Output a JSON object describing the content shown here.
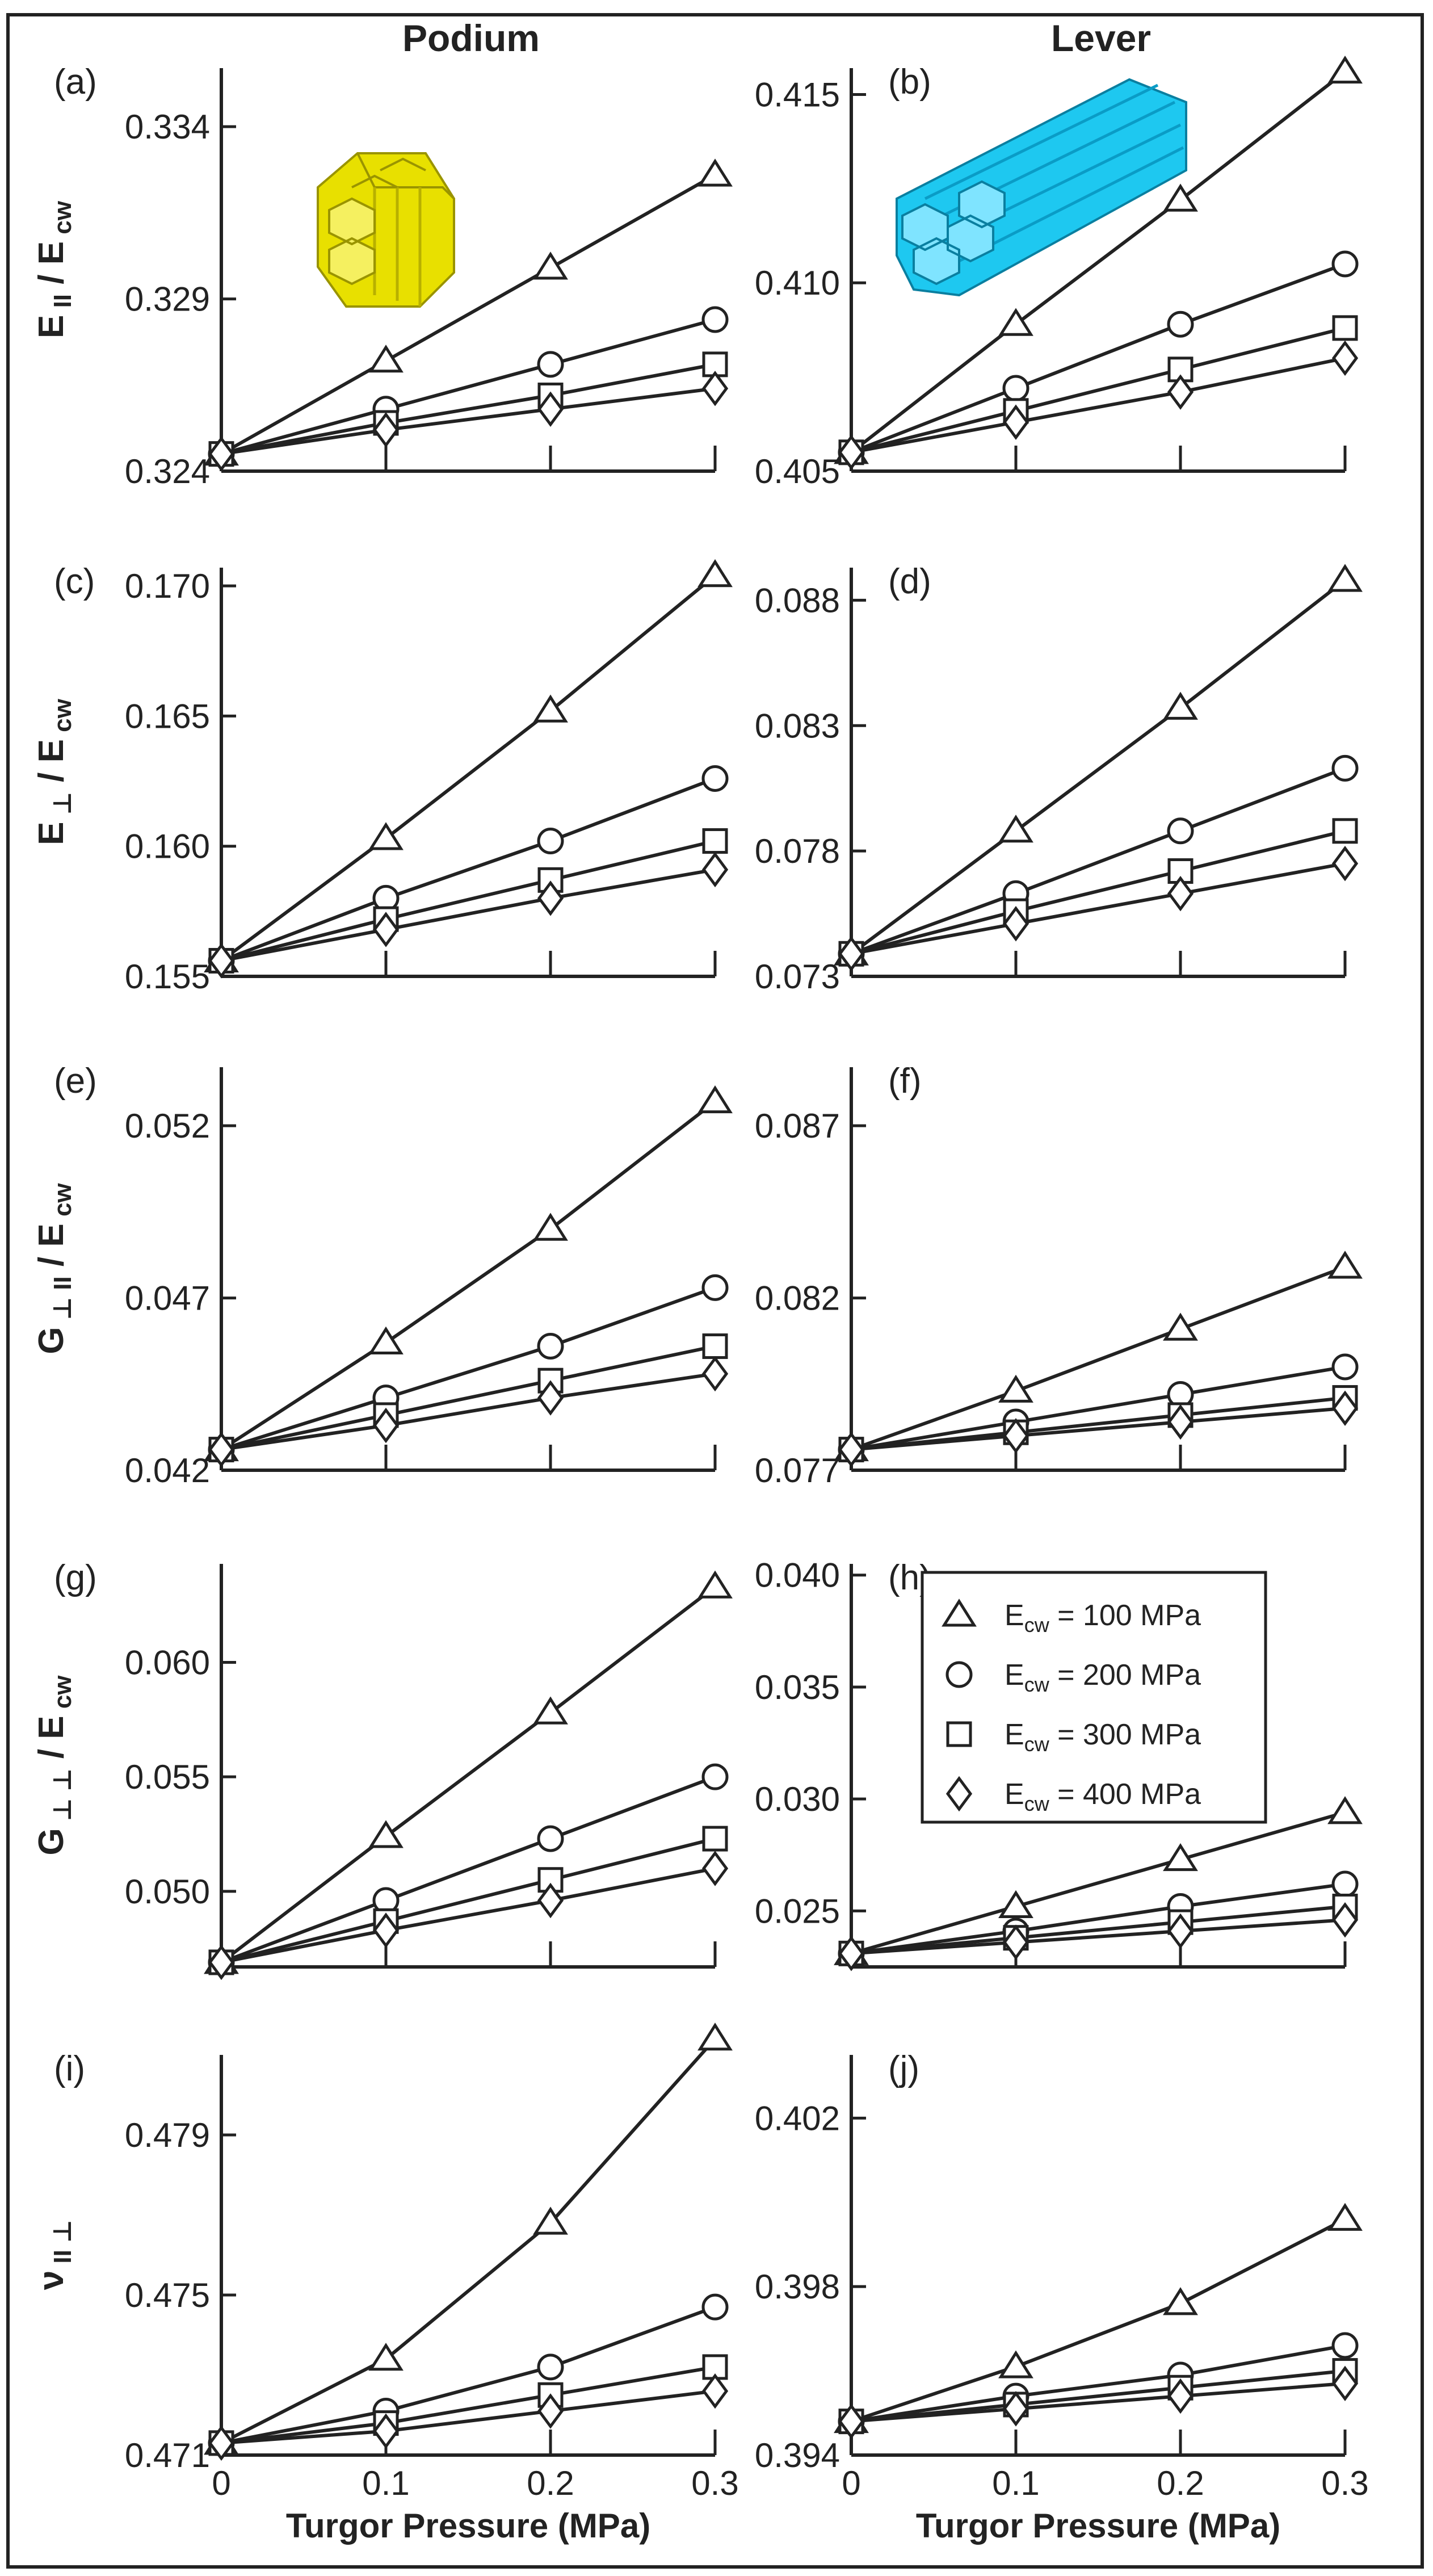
{
  "column_titles": [
    "Podium",
    "Lever"
  ],
  "legend": {
    "entries": [
      {
        "label": "E",
        "sub": "cw",
        "rest": " = 100 MPa",
        "marker": "triangle"
      },
      {
        "label": "E",
        "sub": "cw",
        "rest": " = 200 MPa",
        "marker": "circle"
      },
      {
        "label": "E",
        "sub": "cw",
        "rest": " = 300 MPa",
        "marker": "square"
      },
      {
        "label": "E",
        "sub": "cw",
        "rest": " = 400 MPa",
        "marker": "diamond"
      }
    ]
  },
  "x_axis": {
    "label": "Turgor Pressure (MPa)",
    "ticks": [
      0,
      0.1,
      0.2,
      0.3
    ],
    "tick_labels": [
      "0",
      "0.1",
      "0.2",
      "0.3"
    ],
    "xlim": [
      0,
      0.3
    ]
  },
  "insets": [
    {
      "panel": "(a)",
      "description": "yellow hexagonal cell bundle",
      "color": "#e8e000"
    },
    {
      "panel": "(b)",
      "description": "cyan elongated hexagonal cell bundle",
      "color": "#1ec8f0"
    }
  ],
  "chart_data": [
    {
      "type": "line",
      "panel": "(a)",
      "column": "Podium",
      "ylabel": {
        "main": "E",
        "main_sub": "II",
        "denom": "E",
        "denom_sub": "cw"
      },
      "ylim": [
        0.324,
        0.3357
      ],
      "yticks": [
        0.324,
        0.329,
        0.334
      ],
      "ytick_labels": [
        "0.324",
        "0.329",
        "0.334"
      ],
      "x": [
        0,
        0.1,
        0.2,
        0.3
      ],
      "series": [
        {
          "name": "E_cw = 100 MPa",
          "marker": "triangle",
          "values": [
            0.3245,
            0.3272,
            0.3299,
            0.3326
          ]
        },
        {
          "name": "E_cw = 200 MPa",
          "marker": "circle",
          "values": [
            0.3245,
            0.3258,
            0.3271,
            0.3284
          ]
        },
        {
          "name": "E_cw = 300 MPa",
          "marker": "square",
          "values": [
            0.3245,
            0.3254,
            0.3262,
            0.3271
          ]
        },
        {
          "name": "E_cw = 400 MPa",
          "marker": "diamond",
          "values": [
            0.3245,
            0.3252,
            0.3258,
            0.3264
          ]
        }
      ]
    },
    {
      "type": "line",
      "panel": "(b)",
      "column": "Lever",
      "ylabel": {
        "main": "",
        "main_sub": "",
        "denom": "",
        "denom_sub": ""
      },
      "ylim": [
        0.405,
        0.4157
      ],
      "yticks": [
        0.405,
        0.41,
        0.415
      ],
      "ytick_labels": [
        "0.405",
        "0.410",
        "0.415"
      ],
      "x": [
        0,
        0.1,
        0.2,
        0.3
      ],
      "series": [
        {
          "name": "E_cw = 100 MPa",
          "marker": "triangle",
          "values": [
            0.4055,
            0.4089,
            0.4122,
            0.4156
          ]
        },
        {
          "name": "E_cw = 200 MPa",
          "marker": "circle",
          "values": [
            0.4055,
            0.4072,
            0.4089,
            0.4105
          ]
        },
        {
          "name": "E_cw = 300 MPa",
          "marker": "square",
          "values": [
            0.4055,
            0.4066,
            0.4077,
            0.4088
          ]
        },
        {
          "name": "E_cw = 400 MPa",
          "marker": "diamond",
          "values": [
            0.4055,
            0.4063,
            0.4071,
            0.408
          ]
        }
      ]
    },
    {
      "type": "line",
      "panel": "(c)",
      "column": "Podium",
      "ylabel": {
        "main": "E",
        "main_sub": "⊥",
        "denom": "E",
        "denom_sub": "cw"
      },
      "ylim": [
        0.155,
        0.1707
      ],
      "yticks": [
        0.155,
        0.16,
        0.165,
        0.17
      ],
      "ytick_labels": [
        "0.155",
        "0.160",
        "0.165",
        "0.170"
      ],
      "x": [
        0,
        0.1,
        0.2,
        0.3
      ],
      "series": [
        {
          "name": "E_cw = 100 MPa",
          "marker": "triangle",
          "values": [
            0.1556,
            0.1603,
            0.1652,
            0.1704
          ]
        },
        {
          "name": "E_cw = 200 MPa",
          "marker": "circle",
          "values": [
            0.1556,
            0.158,
            0.1602,
            0.1626
          ]
        },
        {
          "name": "E_cw = 300 MPa",
          "marker": "square",
          "values": [
            0.1556,
            0.1572,
            0.1587,
            0.1602
          ]
        },
        {
          "name": "E_cw = 400 MPa",
          "marker": "diamond",
          "values": [
            0.1556,
            0.1568,
            0.158,
            0.1591
          ]
        }
      ]
    },
    {
      "type": "line",
      "panel": "(d)",
      "column": "Lever",
      "ylabel": {
        "main": "",
        "main_sub": "",
        "denom": "",
        "denom_sub": ""
      },
      "ylim": [
        0.073,
        0.0893
      ],
      "yticks": [
        0.073,
        0.078,
        0.083,
        0.088
      ],
      "ytick_labels": [
        "0.073",
        "0.078",
        "0.083",
        "0.088"
      ],
      "x": [
        0,
        0.1,
        0.2,
        0.3
      ],
      "series": [
        {
          "name": "E_cw = 100 MPa",
          "marker": "triangle",
          "values": [
            0.0739,
            0.0788,
            0.0837,
            0.0888
          ]
        },
        {
          "name": "E_cw = 200 MPa",
          "marker": "circle",
          "values": [
            0.0739,
            0.0763,
            0.0788,
            0.0813
          ]
        },
        {
          "name": "E_cw = 300 MPa",
          "marker": "square",
          "values": [
            0.0739,
            0.0756,
            0.0772,
            0.0788
          ]
        },
        {
          "name": "E_cw = 400 MPa",
          "marker": "diamond",
          "values": [
            0.0739,
            0.0751,
            0.0763,
            0.0775
          ]
        }
      ]
    },
    {
      "type": "line",
      "panel": "(e)",
      "column": "Podium",
      "ylabel": {
        "main": "G",
        "main_sub": "⊥ II",
        "denom": "E",
        "denom_sub": "cw"
      },
      "ylim": [
        0.042,
        0.0537
      ],
      "yticks": [
        0.042,
        0.047,
        0.052
      ],
      "ytick_labels": [
        "0.042",
        "0.047",
        "0.052"
      ],
      "x": [
        0,
        0.1,
        0.2,
        0.3
      ],
      "series": [
        {
          "name": "E_cw = 100 MPa",
          "marker": "triangle",
          "values": [
            0.0426,
            0.0457,
            0.049,
            0.0527
          ]
        },
        {
          "name": "E_cw = 200 MPa",
          "marker": "circle",
          "values": [
            0.0426,
            0.0441,
            0.0456,
            0.0473
          ]
        },
        {
          "name": "E_cw = 300 MPa",
          "marker": "square",
          "values": [
            0.0426,
            0.0436,
            0.0446,
            0.0456
          ]
        },
        {
          "name": "E_cw = 400 MPa",
          "marker": "diamond",
          "values": [
            0.0426,
            0.0433,
            0.0441,
            0.0448
          ]
        }
      ]
    },
    {
      "type": "line",
      "panel": "(f)",
      "column": "Lever",
      "ylabel": {
        "main": "",
        "main_sub": "",
        "denom": "",
        "denom_sub": ""
      },
      "ylim": [
        0.077,
        0.0887
      ],
      "yticks": [
        0.077,
        0.082,
        0.087
      ],
      "ytick_labels": [
        "0.077",
        "0.082",
        "0.087"
      ],
      "x": [
        0,
        0.1,
        0.2,
        0.3
      ],
      "series": [
        {
          "name": "E_cw = 100 MPa",
          "marker": "triangle",
          "values": [
            0.0776,
            0.0793,
            0.0811,
            0.0829
          ]
        },
        {
          "name": "E_cw = 200 MPa",
          "marker": "circle",
          "values": [
            0.0776,
            0.0784,
            0.0792,
            0.08
          ]
        },
        {
          "name": "E_cw = 300 MPa",
          "marker": "square",
          "values": [
            0.0776,
            0.0781,
            0.0786,
            0.0791
          ]
        },
        {
          "name": "E_cw = 400 MPa",
          "marker": "diamond",
          "values": [
            0.0776,
            0.078,
            0.0784,
            0.0788
          ]
        }
      ]
    },
    {
      "type": "line",
      "panel": "(g)",
      "column": "Podium",
      "ylabel": {
        "main": "G",
        "main_sub": "⊥ ⊥",
        "denom": "E",
        "denom_sub": "cw"
      },
      "ylim": [
        0.0467,
        0.0643
      ],
      "yticks": [
        0.05,
        0.055,
        0.06
      ],
      "ytick_labels": [
        "0.050",
        "0.055",
        "0.060"
      ],
      "x": [
        0,
        0.1,
        0.2,
        0.3
      ],
      "series": [
        {
          "name": "E_cw = 100 MPa",
          "marker": "triangle",
          "values": [
            0.0469,
            0.0524,
            0.0578,
            0.0633
          ]
        },
        {
          "name": "E_cw = 200 MPa",
          "marker": "circle",
          "values": [
            0.0469,
            0.0496,
            0.0523,
            0.055
          ]
        },
        {
          "name": "E_cw = 300 MPa",
          "marker": "square",
          "values": [
            0.0469,
            0.0487,
            0.0505,
            0.0523
          ]
        },
        {
          "name": "E_cw = 400 MPa",
          "marker": "diamond",
          "values": [
            0.0469,
            0.0483,
            0.0496,
            0.051
          ]
        }
      ]
    },
    {
      "type": "line",
      "panel": "(h)",
      "column": "Lever",
      "ylabel": {
        "main": "",
        "main_sub": "",
        "denom": "",
        "denom_sub": ""
      },
      "ylim": [
        0.0225,
        0.0405
      ],
      "yticks": [
        0.025,
        0.03,
        0.035,
        0.04
      ],
      "ytick_labels": [
        "0.025",
        "0.030",
        "0.035",
        "0.040"
      ],
      "x": [
        0,
        0.1,
        0.2,
        0.3
      ],
      "series": [
        {
          "name": "E_cw = 100 MPa",
          "marker": "triangle",
          "values": [
            0.0231,
            0.0252,
            0.0273,
            0.0294
          ]
        },
        {
          "name": "E_cw = 200 MPa",
          "marker": "circle",
          "values": [
            0.0231,
            0.0241,
            0.0252,
            0.0262
          ]
        },
        {
          "name": "E_cw = 300 MPa",
          "marker": "square",
          "values": [
            0.0231,
            0.0238,
            0.0245,
            0.0252
          ]
        },
        {
          "name": "E_cw = 400 MPa",
          "marker": "diamond",
          "values": [
            0.0231,
            0.0236,
            0.0241,
            0.0246
          ]
        }
      ]
    },
    {
      "type": "line",
      "panel": "(i)",
      "column": "Podium",
      "ylabel": {
        "main": "ν",
        "main_sub": "II ⊥",
        "denom": "",
        "denom_sub": ""
      },
      "ylim": [
        0.471,
        0.481
      ],
      "yticks": [
        0.471,
        0.475,
        0.479
      ],
      "ytick_labels": [
        "0.471",
        "0.475",
        "0.479"
      ],
      "x": [
        0,
        0.1,
        0.2,
        0.3
      ],
      "series": [
        {
          "name": "E_cw = 100 MPa",
          "marker": "triangle",
          "values": [
            0.4713,
            0.4734,
            0.4768,
            0.4814
          ]
        },
        {
          "name": "E_cw = 200 MPa",
          "marker": "circle",
          "values": [
            0.4713,
            0.4721,
            0.4732,
            0.4747
          ]
        },
        {
          "name": "E_cw = 300 MPa",
          "marker": "square",
          "values": [
            0.4713,
            0.4718,
            0.4725,
            0.4732
          ]
        },
        {
          "name": "E_cw = 400 MPa",
          "marker": "diamond",
          "values": [
            0.4713,
            0.4716,
            0.4721,
            0.4726
          ]
        }
      ]
    },
    {
      "type": "line",
      "panel": "(j)",
      "column": "Lever",
      "ylabel": {
        "main": "",
        "main_sub": "",
        "denom": "",
        "denom_sub": ""
      },
      "ylim": [
        0.394,
        0.4035
      ],
      "yticks": [
        0.394,
        0.398,
        0.402
      ],
      "ytick_labels": [
        "0.394",
        "0.398",
        "0.402"
      ],
      "x": [
        0,
        0.1,
        0.2,
        0.3
      ],
      "series": [
        {
          "name": "E_cw = 100 MPa",
          "marker": "triangle",
          "values": [
            0.3948,
            0.3961,
            0.3976,
            0.3996
          ]
        },
        {
          "name": "E_cw = 200 MPa",
          "marker": "circle",
          "values": [
            0.3948,
            0.3954,
            0.3959,
            0.3966
          ]
        },
        {
          "name": "E_cw = 300 MPa",
          "marker": "square",
          "values": [
            0.3948,
            0.3952,
            0.3956,
            0.396
          ]
        },
        {
          "name": "E_cw = 400 MPa",
          "marker": "diamond",
          "values": [
            0.3948,
            0.3951,
            0.3954,
            0.3957
          ]
        }
      ]
    }
  ]
}
